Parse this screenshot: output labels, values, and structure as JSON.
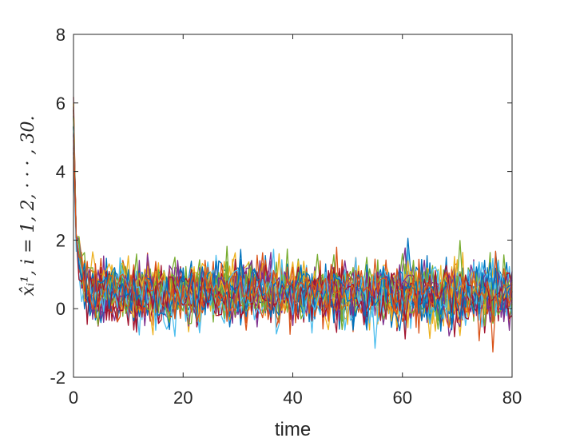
{
  "chart_data": {
    "type": "line",
    "title": "",
    "xlabel": "time",
    "ylabel": "x̂ᵢ¹, i = 1, 2, · · · , 30.",
    "xlim": [
      0,
      80
    ],
    "ylim": [
      -2,
      8
    ],
    "xticks": [
      "0",
      "20",
      "40",
      "60",
      "80"
    ],
    "yticks": [
      "-2",
      "0",
      "2",
      "4",
      "6",
      "8"
    ],
    "grid": false,
    "legend": "none",
    "series_count": 30,
    "initial_value_range": [
      4.3,
      6.2
    ],
    "steady_state_mean": 0.45,
    "steady_state_range": [
      -1.3,
      2.1
    ],
    "settling_time": 2,
    "samples_per_series": 161,
    "colors": [
      "#0072BD",
      "#D95319",
      "#EDB120",
      "#7E2F8E",
      "#77AC30",
      "#4DBEEE",
      "#A2142F"
    ]
  }
}
